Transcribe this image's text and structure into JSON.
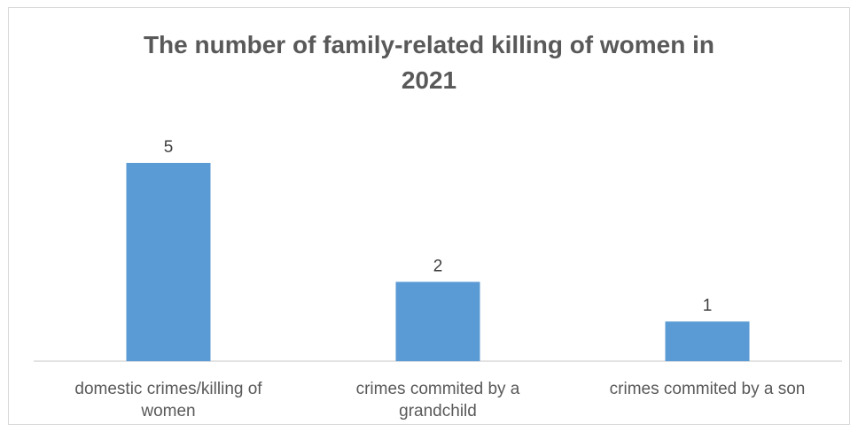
{
  "chart_data": {
    "type": "bar",
    "title": "The number of family-related killing of women in 2021",
    "title_lines": [
      "The number of family-related killing of women in",
      "2021"
    ],
    "categories": [
      "domestic crimes/killing of women",
      "crimes commited by a grandchild",
      "crimes commited by a son"
    ],
    "category_lines": [
      [
        "domestic crimes/killing of",
        "women"
      ],
      [
        "crimes commited by a",
        "grandchild"
      ],
      [
        "crimes commited by a son"
      ]
    ],
    "values": [
      5,
      2,
      1
    ],
    "ylim": [
      0,
      5
    ],
    "grid": false,
    "legend": "none",
    "bar_color": "#5b9bd5",
    "axis_color": "#d9d9d9"
  }
}
